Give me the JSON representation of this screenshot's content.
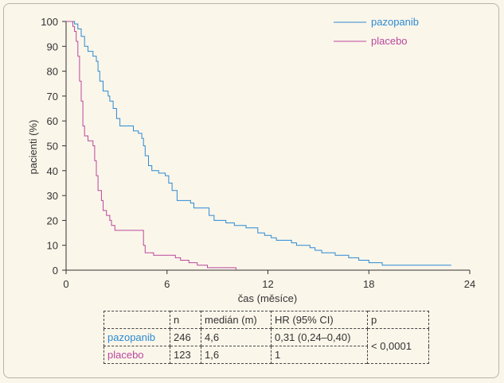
{
  "chart_data": {
    "type": "line",
    "step": true,
    "xlabel": "čas (měsíce)",
    "ylabel": "pacienti (%)",
    "xlim": [
      0,
      24
    ],
    "ylim": [
      0,
      100
    ],
    "xticks": [
      "0",
      "6",
      "12",
      "18",
      "24"
    ],
    "yticks": [
      "0",
      "10",
      "20",
      "30",
      "40",
      "50",
      "60",
      "70",
      "80",
      "90",
      "100"
    ],
    "grid": false,
    "legend_position": "top-right",
    "series": [
      {
        "name": "pazopanib",
        "color": "#2b8ad3",
        "points": [
          [
            0,
            100
          ],
          [
            0.5,
            99
          ],
          [
            0.7,
            97
          ],
          [
            0.9,
            94
          ],
          [
            1.1,
            90
          ],
          [
            1.3,
            88
          ],
          [
            1.6,
            86
          ],
          [
            1.8,
            84
          ],
          [
            1.9,
            80
          ],
          [
            2.0,
            76
          ],
          [
            2.2,
            72
          ],
          [
            2.5,
            70
          ],
          [
            2.6,
            68
          ],
          [
            2.8,
            65
          ],
          [
            3.0,
            61
          ],
          [
            3.2,
            58
          ],
          [
            3.8,
            58
          ],
          [
            4.0,
            56
          ],
          [
            4.3,
            55
          ],
          [
            4.5,
            53
          ],
          [
            4.6,
            50
          ],
          [
            4.7,
            46
          ],
          [
            4.9,
            42
          ],
          [
            5.1,
            40
          ],
          [
            5.5,
            39
          ],
          [
            5.9,
            38
          ],
          [
            6.1,
            35
          ],
          [
            6.3,
            32
          ],
          [
            6.6,
            28
          ],
          [
            7.4,
            27
          ],
          [
            7.6,
            25
          ],
          [
            8.2,
            25
          ],
          [
            8.5,
            22
          ],
          [
            8.8,
            20
          ],
          [
            9.5,
            19
          ],
          [
            10.0,
            18
          ],
          [
            10.7,
            17
          ],
          [
            11.4,
            15
          ],
          [
            11.8,
            14
          ],
          [
            12.2,
            13
          ],
          [
            12.5,
            12
          ],
          [
            13.4,
            11
          ],
          [
            13.7,
            10
          ],
          [
            14.1,
            10
          ],
          [
            14.5,
            9
          ],
          [
            14.8,
            8
          ],
          [
            15.2,
            7
          ],
          [
            15.7,
            7
          ],
          [
            16.0,
            6
          ],
          [
            16.8,
            5
          ],
          [
            17.2,
            5
          ],
          [
            17.4,
            4
          ],
          [
            17.8,
            4
          ],
          [
            18.0,
            3
          ],
          [
            18.8,
            2
          ],
          [
            22.9,
            2
          ]
        ]
      },
      {
        "name": "placebo",
        "color": "#b9489e",
        "points": [
          [
            0,
            100
          ],
          [
            0.4,
            98
          ],
          [
            0.5,
            96
          ],
          [
            0.6,
            92
          ],
          [
            0.7,
            86
          ],
          [
            0.8,
            76
          ],
          [
            0.9,
            68
          ],
          [
            1.0,
            58
          ],
          [
            1.1,
            54
          ],
          [
            1.3,
            52
          ],
          [
            1.6,
            50
          ],
          [
            1.7,
            44
          ],
          [
            1.8,
            38
          ],
          [
            1.9,
            32
          ],
          [
            2.1,
            28
          ],
          [
            2.2,
            24
          ],
          [
            2.4,
            22
          ],
          [
            2.6,
            20
          ],
          [
            2.7,
            18
          ],
          [
            2.9,
            16
          ],
          [
            3.2,
            16
          ],
          [
            4.4,
            16
          ],
          [
            4.6,
            10
          ],
          [
            4.7,
            7
          ],
          [
            5.2,
            6
          ],
          [
            6.5,
            5
          ],
          [
            6.8,
            4
          ],
          [
            7.3,
            3
          ],
          [
            7.8,
            2
          ],
          [
            8.4,
            1
          ],
          [
            10.1,
            0
          ]
        ]
      }
    ]
  },
  "table": {
    "headers": [
      "",
      "n",
      "medián (m)",
      "HR (95% CI)",
      "p"
    ],
    "rows": [
      {
        "name": "pazopanib",
        "n": "246",
        "median": "4,6",
        "hr": "0,31 (0,24–0,40)"
      },
      {
        "name": "placebo",
        "n": "123",
        "median": "1,6",
        "hr": "1"
      }
    ],
    "p_value": "< 0,0001"
  }
}
